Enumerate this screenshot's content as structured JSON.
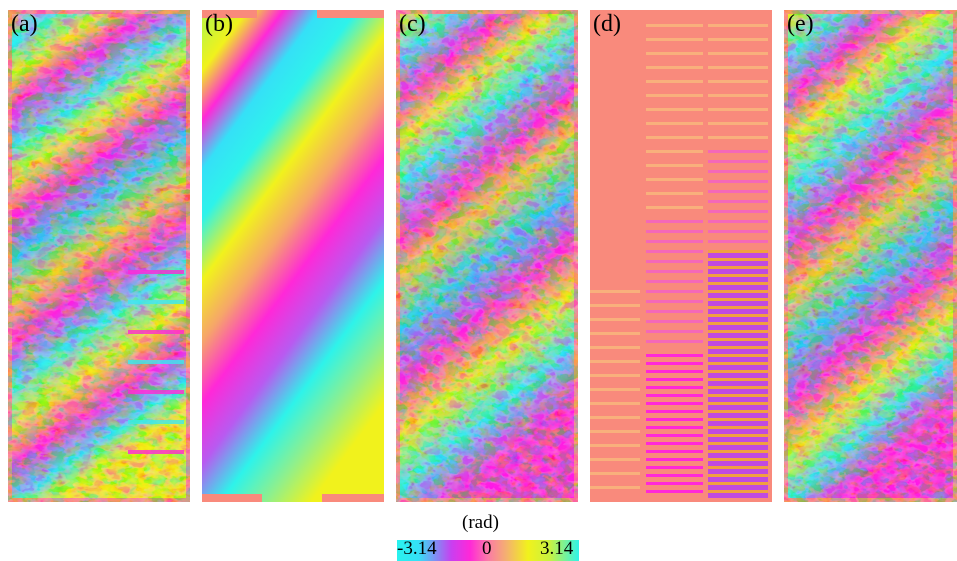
{
  "panels": [
    {
      "id": "a",
      "label": "(a)",
      "kind": "noisy_interferogram"
    },
    {
      "id": "b",
      "label": "(b)",
      "kind": "smooth_phase"
    },
    {
      "id": "c",
      "label": "(c)",
      "kind": "noisy_interferogram"
    },
    {
      "id": "d",
      "label": "(d)",
      "kind": "stripe_phase"
    },
    {
      "id": "e",
      "label": "(e)",
      "kind": "noisy_interferogram"
    }
  ],
  "colorbar": {
    "unit": "(rad)",
    "min_label": "-3.14",
    "mid_label": "0",
    "max_label": "3.14",
    "range": [
      -3.14,
      3.14
    ],
    "colors": [
      "#29f2ee",
      "#ff28d8",
      "#f98a7c",
      "#f1f21c",
      "#2ef3ea"
    ]
  },
  "background_color": "#f98a7c"
}
